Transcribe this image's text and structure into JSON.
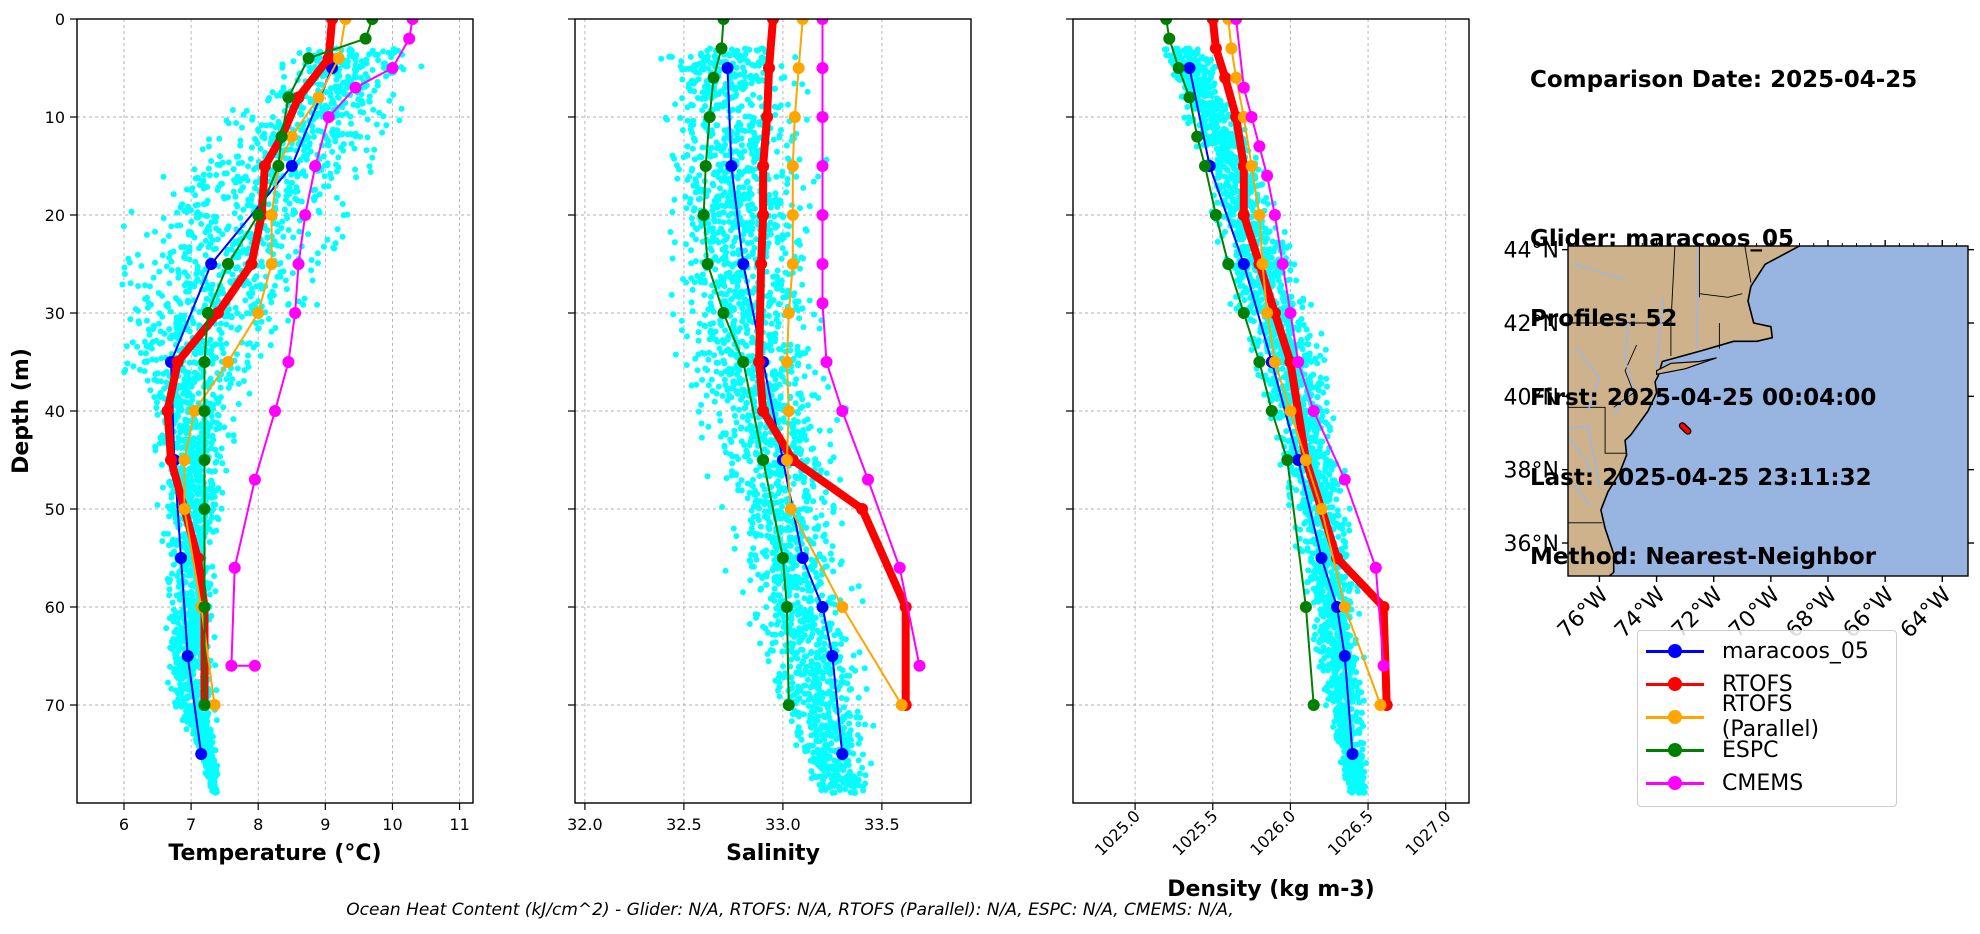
{
  "info": {
    "comparison_date": "Comparison Date: 2025-04-25",
    "glider": "Glider: maracoos_05",
    "profiles": "Profiles: 52",
    "first": "First: 2025-04-25 00:04:00",
    "last": "Last: 2025-04-25 23:11:32",
    "method": "Method: Nearest-Neighbor"
  },
  "footer": "Ocean Heat Content (kJ/cm^2) - Glider: N/A,  RTOFS: N/A,  RTOFS (Parallel): N/A,  ESPC: N/A,  CMEMS: N/A,",
  "legend": [
    {
      "label": "maracoos_05",
      "color": "#0000ff"
    },
    {
      "label": "RTOFS",
      "color": "#ff0000"
    },
    {
      "label": "RTOFS (Parallel)",
      "color": "#ffa500"
    },
    {
      "label": "ESPC",
      "color": "#008000"
    },
    {
      "label": "CMEMS",
      "color": "#ff00ff"
    }
  ],
  "colors": {
    "glider_points": "#00ffff",
    "land": "#cdb28c",
    "ocean": "#98b5e2",
    "rivers": "#9fb6e0"
  },
  "chart_data": [
    {
      "type": "line",
      "xlabel": "Temperature (°C)",
      "ylabel": "Depth (m)",
      "xlim": [
        5.3,
        11.2
      ],
      "ylim": [
        80,
        0
      ],
      "xticks": [
        6,
        7,
        8,
        9,
        10,
        11
      ],
      "yticks": [
        0,
        10,
        20,
        30,
        40,
        50,
        60,
        70
      ],
      "grid": true,
      "scatter_band": {
        "name": "glider profiles",
        "depth": [
          3,
          8,
          12,
          16,
          20,
          25,
          30,
          35,
          40,
          45,
          50,
          55,
          60,
          65,
          70,
          75,
          79
        ],
        "min": [
          8.4,
          7.5,
          7.2,
          6.3,
          5.9,
          5.7,
          5.6,
          5.7,
          6.3,
          6.5,
          6.5,
          6.6,
          6.6,
          6.6,
          6.7,
          7.1,
          7.3
        ],
        "max": [
          10.6,
          10.4,
          10.2,
          9.9,
          9.6,
          9.3,
          8.8,
          8.2,
          7.7,
          7.6,
          7.5,
          7.4,
          7.4,
          7.4,
          7.4,
          7.4,
          7.4
        ]
      },
      "series": [
        {
          "name": "maracoos_05",
          "x": [
            9.1,
            8.5,
            7.3,
            6.7,
            6.75,
            6.85,
            6.95,
            7.15
          ],
          "depth": [
            5,
            15,
            25,
            35,
            45,
            55,
            65,
            75
          ]
        },
        {
          "name": "RTOFS",
          "x": [
            9.1,
            9.05,
            8.6,
            8.35,
            8.1,
            8.05,
            7.9,
            7.4,
            6.8,
            6.65,
            6.7,
            6.9,
            7.1,
            7.2,
            7.2
          ],
          "depth": [
            0,
            4,
            8,
            12,
            15,
            20,
            25,
            30,
            35,
            40,
            45,
            50,
            55,
            60,
            70
          ]
        },
        {
          "name": "RTOFS (Parallel)",
          "x": [
            9.3,
            9.2,
            8.9,
            8.5,
            8.3,
            8.2,
            8.2,
            8.0,
            7.55,
            7.05,
            6.9,
            6.9,
            7.15,
            7.35
          ],
          "depth": [
            0,
            4,
            8,
            12,
            15,
            20,
            25,
            30,
            35,
            40,
            45,
            50,
            60,
            70
          ]
        },
        {
          "name": "ESPC",
          "x": [
            9.7,
            9.6,
            8.75,
            8.45,
            8.35,
            8.3,
            8.0,
            7.55,
            7.25,
            7.2,
            7.2,
            7.2,
            7.2,
            7.2,
            7.2
          ],
          "depth": [
            0,
            2,
            4,
            8,
            12,
            15,
            20,
            25,
            30,
            35,
            40,
            45,
            50,
            60,
            70
          ]
        },
        {
          "name": "CMEMS",
          "x": [
            10.3,
            10.25,
            10.0,
            9.45,
            9.05,
            8.85,
            8.7,
            8.6,
            8.55,
            8.45,
            8.25,
            7.95,
            7.65,
            7.6,
            7.95
          ],
          "depth": [
            0,
            2,
            5,
            7,
            10,
            15,
            20,
            25,
            30,
            35,
            40,
            47,
            56,
            66,
            66
          ]
        }
      ]
    },
    {
      "type": "line",
      "xlabel": "Salinity",
      "ylabel": "",
      "xlim": [
        31.95,
        33.95
      ],
      "ylim": [
        80,
        0
      ],
      "xticks": [
        32.0,
        32.5,
        33.0,
        33.5
      ],
      "yticks": [
        0,
        10,
        20,
        30,
        40,
        50,
        60,
        70
      ],
      "grid": true,
      "scatter_band": {
        "name": "glider profiles",
        "depth": [
          3,
          8,
          15,
          25,
          30,
          35,
          40,
          45,
          50,
          55,
          60,
          65,
          70,
          75,
          79
        ],
        "min": [
          32.38,
          32.35,
          32.34,
          32.38,
          32.42,
          32.48,
          32.55,
          32.62,
          32.68,
          32.72,
          32.78,
          32.85,
          32.95,
          33.05,
          33.15
        ],
        "max": [
          33.05,
          33.12,
          33.18,
          33.2,
          33.22,
          33.25,
          33.28,
          33.3,
          33.32,
          33.36,
          33.4,
          33.43,
          33.45,
          33.46,
          33.46
        ]
      },
      "series": [
        {
          "name": "maracoos_05",
          "x": [
            32.72,
            32.74,
            32.8,
            32.9,
            33.0,
            33.1,
            33.2,
            33.25,
            33.3
          ],
          "depth": [
            5,
            15,
            25,
            35,
            45,
            55,
            60,
            65,
            75
          ]
        },
        {
          "name": "RTOFS",
          "x": [
            32.95,
            32.93,
            32.92,
            32.9,
            32.9,
            32.89,
            32.88,
            32.9,
            33.05,
            33.4,
            33.62,
            33.62
          ],
          "depth": [
            0,
            5,
            10,
            15,
            20,
            25,
            35,
            40,
            45,
            50,
            60,
            70
          ]
        },
        {
          "name": "RTOFS (Parallel)",
          "x": [
            33.1,
            33.08,
            33.06,
            33.05,
            33.05,
            33.05,
            33.03,
            33.02,
            33.03,
            33.02,
            33.04,
            33.3,
            33.6
          ],
          "depth": [
            0,
            5,
            10,
            15,
            20,
            25,
            30,
            35,
            40,
            45,
            50,
            60,
            70
          ]
        },
        {
          "name": "ESPC",
          "x": [
            32.7,
            32.69,
            32.65,
            32.63,
            32.61,
            32.6,
            32.62,
            32.7,
            32.8,
            32.9,
            33.0,
            33.02,
            33.03
          ],
          "depth": [
            0,
            3,
            6,
            10,
            15,
            20,
            25,
            30,
            35,
            45,
            55,
            60,
            70
          ]
        },
        {
          "name": "CMEMS",
          "x": [
            33.2,
            33.2,
            33.2,
            33.2,
            33.2,
            33.2,
            33.2,
            33.22,
            33.3,
            33.43,
            33.59,
            33.69
          ],
          "depth": [
            0,
            5,
            10,
            15,
            20,
            25,
            29,
            35,
            40,
            47,
            56,
            66
          ]
        }
      ]
    },
    {
      "type": "line",
      "xlabel": "Density (kg m-3)",
      "ylabel": "",
      "xlim": [
        1024.6,
        1027.15
      ],
      "ylim": [
        80,
        0
      ],
      "xticks": [
        1025.0,
        1025.5,
        1026.0,
        1026.5,
        1027.0
      ],
      "yticks": [
        0,
        10,
        20,
        30,
        40,
        50,
        60,
        70
      ],
      "grid": true,
      "scatter_band": {
        "name": "glider profiles",
        "depth": [
          3,
          8,
          15,
          25,
          30,
          35,
          40,
          45,
          50,
          55,
          60,
          65,
          70,
          75,
          79
        ],
        "min": [
          1025.15,
          1025.25,
          1025.4,
          1025.55,
          1025.65,
          1025.75,
          1025.82,
          1025.9,
          1026.0,
          1026.05,
          1026.1,
          1026.15,
          1026.2,
          1026.3,
          1026.35
        ],
        "max": [
          1025.5,
          1025.62,
          1025.85,
          1026.05,
          1026.15,
          1026.25,
          1026.3,
          1026.35,
          1026.4,
          1026.43,
          1026.46,
          1026.48,
          1026.5,
          1026.5,
          1026.5
        ]
      },
      "series": [
        {
          "name": "maracoos_05",
          "x": [
            1025.35,
            1025.48,
            1025.7,
            1025.88,
            1026.05,
            1026.2,
            1026.3,
            1026.35,
            1026.4
          ],
          "depth": [
            5,
            15,
            25,
            35,
            45,
            55,
            60,
            65,
            75
          ]
        },
        {
          "name": "RTOFS",
          "x": [
            1025.5,
            1025.52,
            1025.58,
            1025.65,
            1025.7,
            1025.7,
            1025.8,
            1025.9,
            1026.0,
            1026.1,
            1026.3,
            1026.6,
            1026.62
          ],
          "depth": [
            0,
            3,
            6,
            10,
            15,
            20,
            25,
            30,
            35,
            45,
            55,
            60,
            70
          ]
        },
        {
          "name": "RTOFS (Parallel)",
          "x": [
            1025.6,
            1025.62,
            1025.65,
            1025.7,
            1025.75,
            1025.8,
            1025.82,
            1025.85,
            1025.9,
            1026.0,
            1026.1,
            1026.2,
            1026.35,
            1026.58
          ],
          "depth": [
            0,
            3,
            6,
            10,
            15,
            20,
            25,
            30,
            35,
            40,
            45,
            50,
            60,
            70
          ]
        },
        {
          "name": "ESPC",
          "x": [
            1025.2,
            1025.22,
            1025.28,
            1025.35,
            1025.4,
            1025.45,
            1025.52,
            1025.6,
            1025.7,
            1025.8,
            1025.88,
            1025.98,
            1026.1,
            1026.15
          ],
          "depth": [
            0,
            2,
            5,
            8,
            12,
            15,
            20,
            25,
            30,
            35,
            40,
            45,
            60,
            70
          ]
        },
        {
          "name": "CMEMS",
          "x": [
            1025.65,
            1025.7,
            1025.75,
            1025.8,
            1025.85,
            1025.9,
            1025.95,
            1026.0,
            1026.05,
            1026.15,
            1026.35,
            1026.55,
            1026.6
          ],
          "depth": [
            0,
            7,
            10,
            13,
            16,
            20,
            25,
            30,
            35,
            40,
            47,
            56,
            66
          ]
        }
      ]
    }
  ],
  "map": {
    "lat_labels": [
      "44°N",
      "42°N",
      "40°N",
      "38°N",
      "36°N"
    ],
    "lat_values": [
      44,
      42,
      40,
      38,
      36
    ],
    "lon_labels": [
      "76°W",
      "74°W",
      "72°W",
      "70°W",
      "68°W",
      "66°W",
      "64°W"
    ],
    "lon_values": [
      -76,
      -74,
      -72,
      -70,
      -68,
      -66,
      -64
    ],
    "lon_range": [
      -77.1,
      -63.1
    ],
    "lat_range": [
      35.1,
      44.1
    ],
    "glider_track": {
      "lon": [
        -73.1,
        -72.9
      ],
      "lat": [
        39.2,
        39.05
      ]
    }
  }
}
